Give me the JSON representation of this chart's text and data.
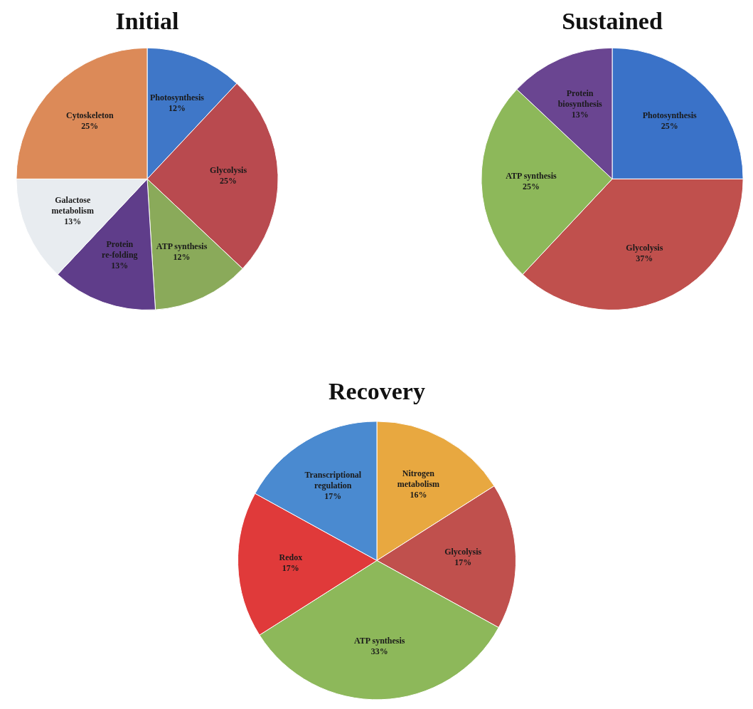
{
  "chart_data": [
    {
      "type": "pie",
      "title": "Initial",
      "categories": [
        "Photosynthesis",
        "Glycolysis",
        "ATP synthesis",
        "Protein re-folding",
        "Galactose metabolism",
        "Cytoskeleton"
      ],
      "values": [
        12,
        25,
        12,
        13,
        13,
        25
      ],
      "value_labels": [
        "12%",
        "25%",
        "12%",
        "13%",
        "13%",
        "25%"
      ],
      "colors": [
        "#3f77c8",
        "#b94a4f",
        "#8aaa5a",
        "#5f3d8a",
        "#e8ecf0",
        "#dc8a58"
      ]
    },
    {
      "type": "pie",
      "title": "Sustained",
      "categories": [
        "Photosynthesis",
        "Glycolysis",
        "ATP synthesis",
        "Protein biosynthesis"
      ],
      "values": [
        25,
        37,
        25,
        13
      ],
      "value_labels": [
        "25%",
        "37%",
        "25%",
        "13%"
      ],
      "colors": [
        "#3a72c8",
        "#c0504d",
        "#8db85a",
        "#6a4591"
      ]
    },
    {
      "type": "pie",
      "title": "Recovery",
      "categories": [
        "Nitrogen metabolism",
        "Glycolysis",
        "ATP synthesis",
        "Redox",
        "Transcriptional regulation"
      ],
      "values": [
        16,
        17,
        33,
        17,
        17
      ],
      "value_labels": [
        "16%",
        "17%",
        "33%",
        "17%",
        "17%"
      ],
      "colors": [
        "#e8a840",
        "#c0504d",
        "#8db85a",
        "#e03a3a",
        "#4a8ad0"
      ]
    }
  ]
}
